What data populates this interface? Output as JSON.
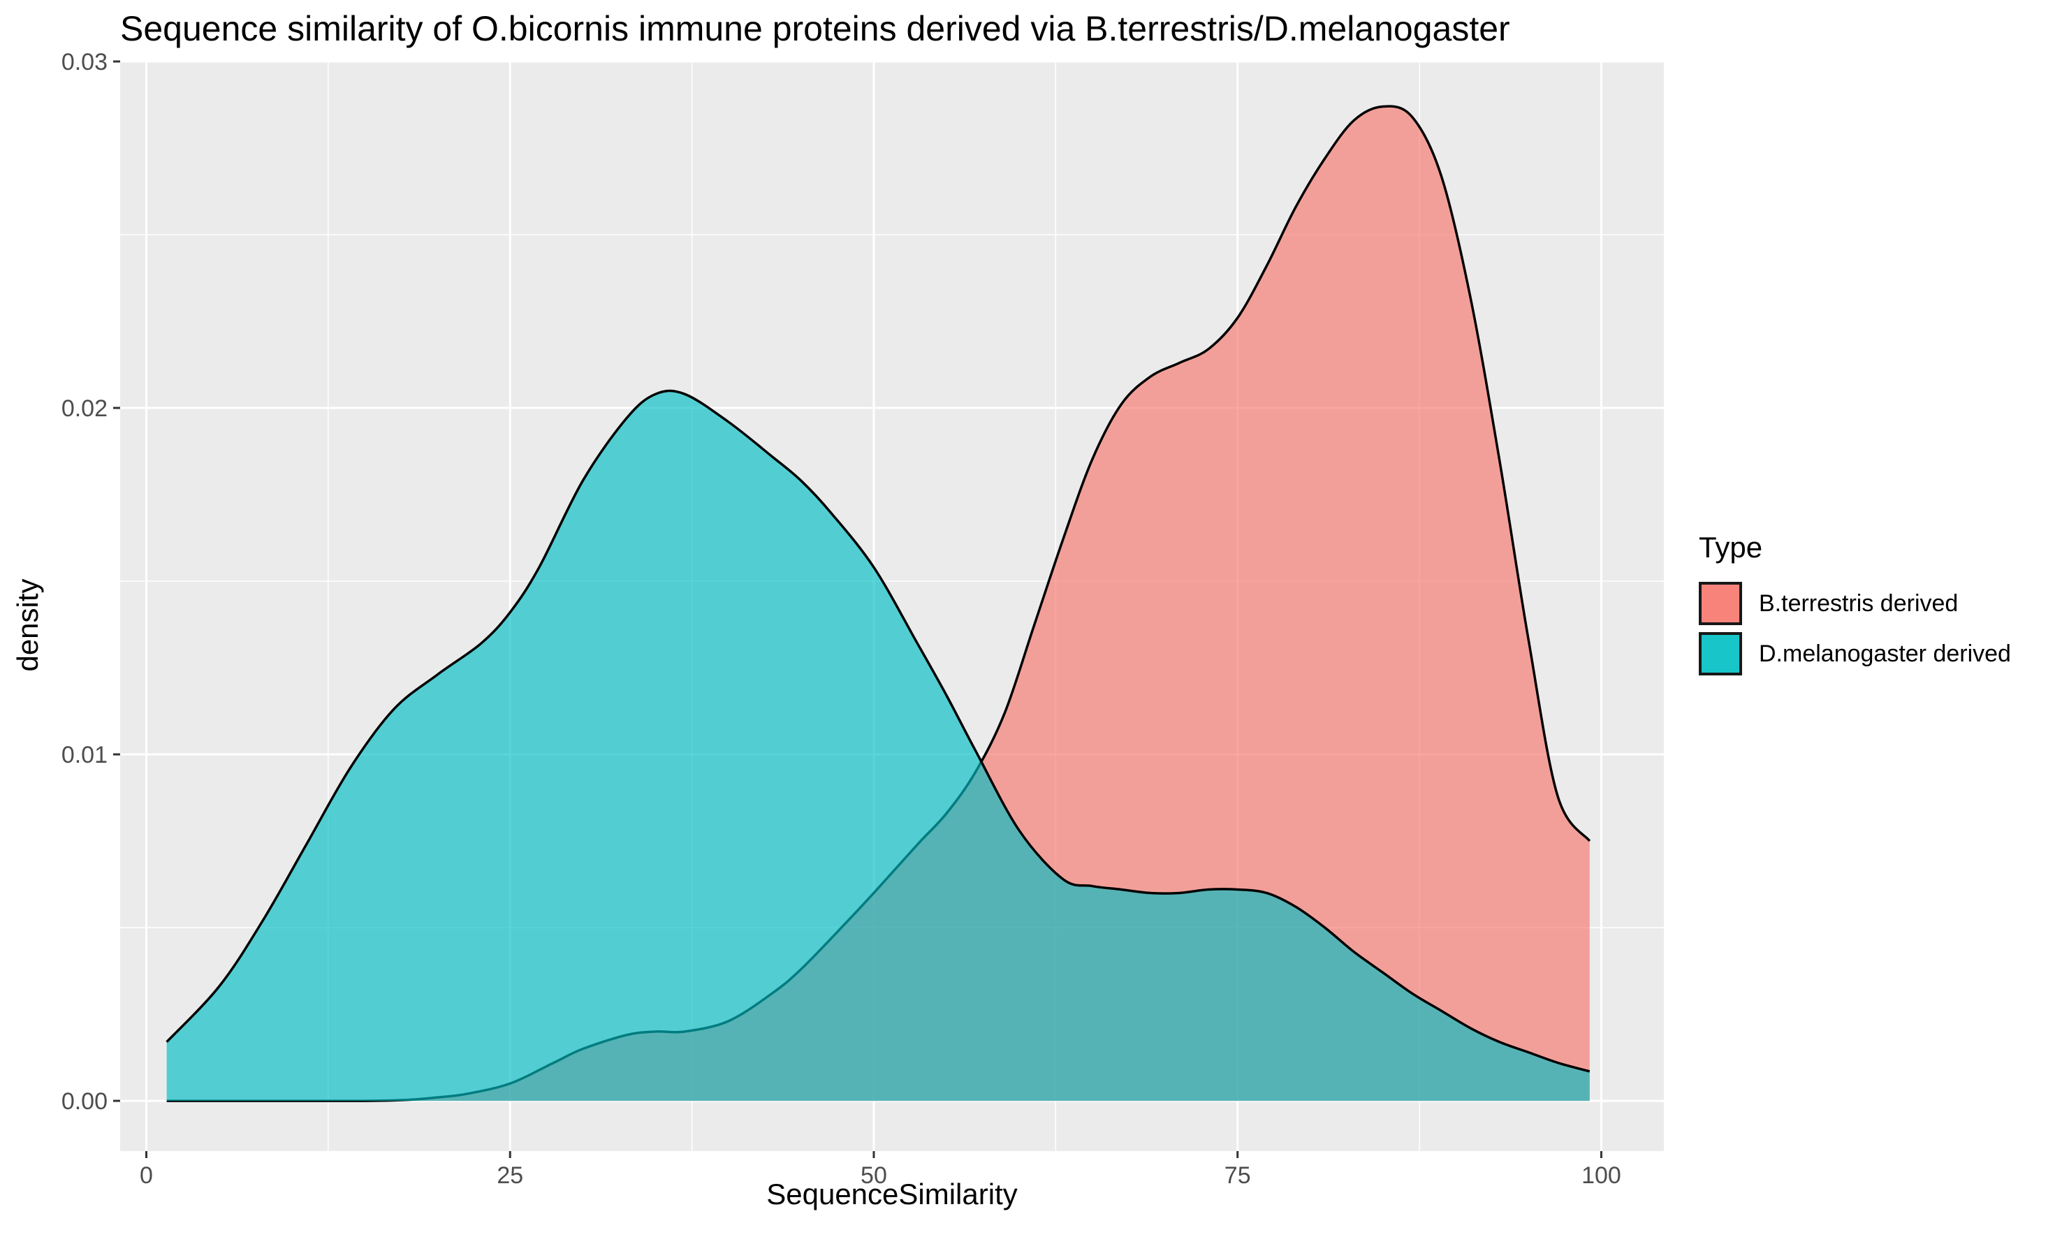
{
  "chart_data": {
    "type": "area",
    "title": "Sequence similarity of O.bicornis immune proteins derived via B.terrestris/D.melanogaster",
    "xlabel": "SequenceSimilarity",
    "ylabel": "density",
    "xlim": [
      -1.8,
      104.3
    ],
    "ylim": [
      -0.00145,
      0.03
    ],
    "x_ticks": [
      0,
      25,
      50,
      75,
      100
    ],
    "x_tick_labels": [
      "0",
      "25",
      "50",
      "75",
      "100"
    ],
    "y_ticks": [
      0.0,
      0.01,
      0.02,
      0.03
    ],
    "y_tick_labels": [
      "0.00",
      "0.01",
      "0.02",
      "0.03"
    ],
    "grid": true,
    "legend": {
      "title": "Type",
      "position": "right"
    },
    "series": [
      {
        "name": "B.terrestris derived",
        "color": "#F8766D",
        "x": [
          1.4,
          5,
          10,
          15,
          18,
          20,
          22,
          25,
          28,
          30,
          33,
          35,
          37,
          40,
          43,
          45,
          48,
          50,
          53,
          55,
          57,
          59,
          61,
          63,
          65,
          67,
          69,
          71,
          73,
          75,
          77,
          79,
          81,
          83,
          85,
          87,
          89,
          91,
          93,
          95,
          97,
          99.2
        ],
        "y": [
          0.0,
          0.0,
          0.0,
          0.0,
          3e-05,
          0.0001,
          0.0002,
          0.0005,
          0.0011,
          0.0015,
          0.0019,
          0.002,
          0.002,
          0.0023,
          0.0031,
          0.0038,
          0.0051,
          0.006,
          0.0074,
          0.0083,
          0.0095,
          0.0112,
          0.0137,
          0.0162,
          0.0185,
          0.0201,
          0.0209,
          0.0213,
          0.0217,
          0.0226,
          0.0241,
          0.0258,
          0.0272,
          0.0283,
          0.0287,
          0.0284,
          0.0267,
          0.0232,
          0.0185,
          0.0133,
          0.0088,
          0.0075
        ]
      },
      {
        "name": "D.melanogaster derived",
        "color": "#00BFC4",
        "x": [
          1.4,
          5,
          8,
          11,
          14,
          17,
          20,
          23,
          25,
          27,
          30,
          33,
          35,
          37,
          40,
          43,
          45,
          47,
          50,
          53,
          55,
          57,
          60,
          63,
          65,
          67,
          69,
          71,
          73,
          75,
          77,
          79,
          81,
          83,
          85,
          87,
          89,
          91,
          93,
          95,
          97,
          99.2
        ],
        "y": [
          0.0017,
          0.0033,
          0.0052,
          0.0074,
          0.0096,
          0.0113,
          0.0123,
          0.0132,
          0.0141,
          0.0154,
          0.0179,
          0.0197,
          0.0204,
          0.0204,
          0.0196,
          0.0186,
          0.0179,
          0.017,
          0.0154,
          0.0132,
          0.0117,
          0.0101,
          0.0078,
          0.0064,
          0.0062,
          0.0061,
          0.006,
          0.006,
          0.0061,
          0.0061,
          0.006,
          0.0056,
          0.005,
          0.0043,
          0.0037,
          0.0031,
          0.0026,
          0.0021,
          0.0017,
          0.0014,
          0.0011,
          0.00085
        ]
      }
    ]
  }
}
